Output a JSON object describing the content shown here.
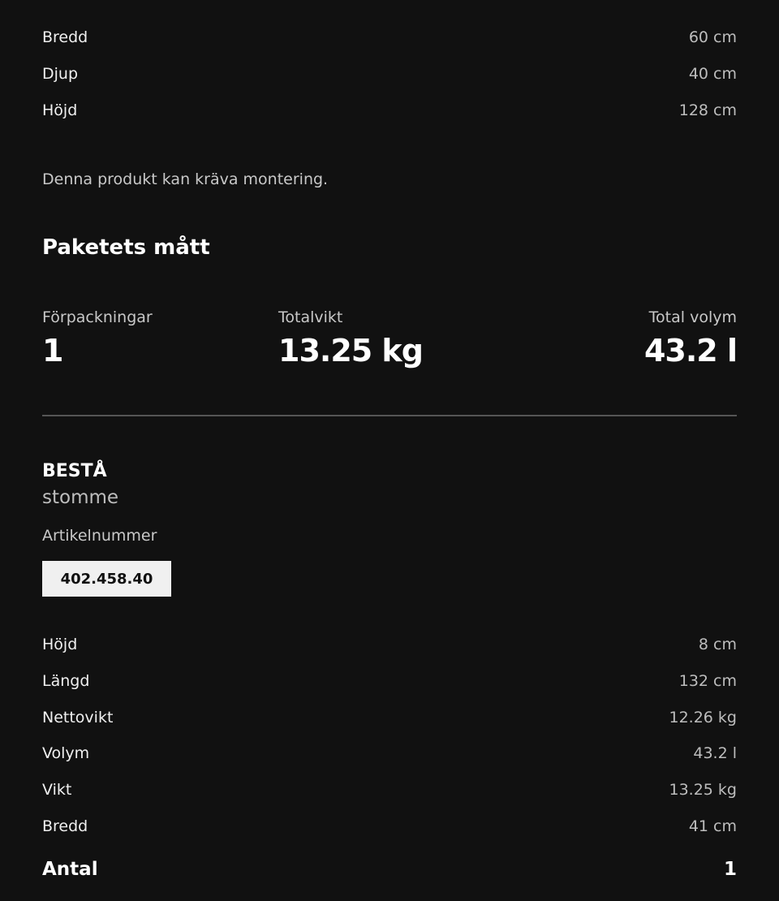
{
  "product_dimensions": [
    {
      "label": "Bredd",
      "value": "60 cm"
    },
    {
      "label": "Djup",
      "value": "40 cm"
    },
    {
      "label": "Höjd",
      "value": "128 cm"
    }
  ],
  "assembly_note": "Denna produkt kan kräva montering.",
  "package_heading": "Paketets mått",
  "package_stats": [
    {
      "label": "Förpackningar",
      "value": "1"
    },
    {
      "label": "Totalvikt",
      "value": "13.25 kg"
    },
    {
      "label": "Total volym",
      "value": "43.2 l"
    }
  ],
  "item": {
    "name": "BESTÅ",
    "description": "stomme",
    "article_label": "Artikelnummer",
    "article_number": "402.458.40",
    "specs": [
      {
        "label": "Höjd",
        "value": "8 cm"
      },
      {
        "label": "Längd",
        "value": "132 cm"
      },
      {
        "label": "Nettovikt",
        "value": "12.26 kg"
      },
      {
        "label": "Volym",
        "value": "43.2 l"
      },
      {
        "label": "Vikt",
        "value": "13.25 kg"
      },
      {
        "label": "Bredd",
        "value": "41 cm"
      }
    ],
    "quantity_label": "Antal",
    "quantity": "1"
  }
}
